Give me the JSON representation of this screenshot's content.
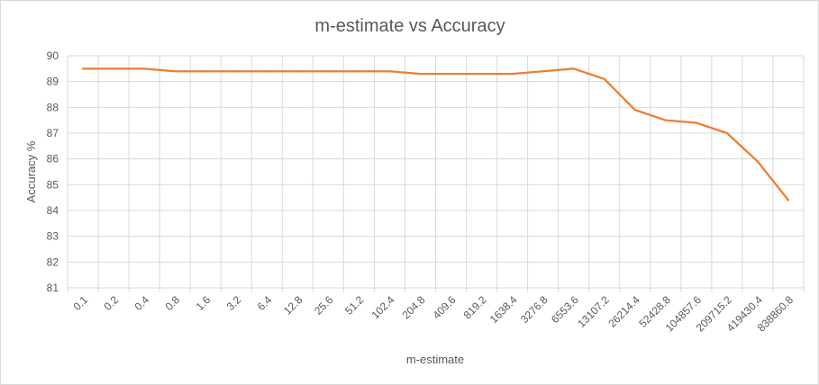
{
  "chart_data": {
    "type": "line",
    "title": "m-estimate vs Accuracy",
    "xlabel": "m-estimate",
    "ylabel": "Accuracy %",
    "ylim": [
      81,
      90
    ],
    "yticks": [
      "81",
      "82",
      "83",
      "84",
      "85",
      "86",
      "87",
      "88",
      "89",
      "90"
    ],
    "grid": true,
    "legend": "none",
    "categories": [
      "0.1",
      "0.2",
      "0.4",
      "0.8",
      "1.6",
      "3.2",
      "6.4",
      "12.8",
      "25.6",
      "51.2",
      "102.4",
      "204.8",
      "409.6",
      "819.2",
      "1638.4",
      "3276.8",
      "6553.6",
      "13107.2",
      "26214.4",
      "52428.8",
      "104857.6",
      "209715.2",
      "419430.4",
      "838860.8"
    ],
    "series": [
      {
        "color": "#ED7D31",
        "values": [
          89.5,
          89.5,
          89.5,
          89.4,
          89.4,
          89.4,
          89.4,
          89.4,
          89.4,
          89.4,
          89.4,
          89.3,
          89.3,
          89.3,
          89.3,
          89.4,
          89.5,
          89.1,
          87.9,
          87.5,
          87.4,
          87.0,
          85.9,
          84.4
        ]
      }
    ]
  },
  "colors": {
    "gridline": "#d9d9d9",
    "text": "#595959",
    "frame": "#d9d9d9"
  }
}
